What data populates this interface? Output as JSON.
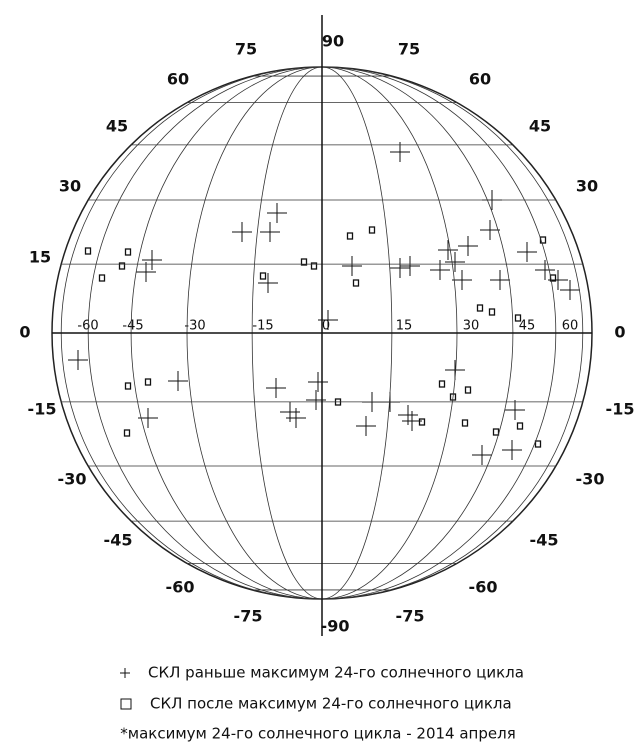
{
  "outer_labels": [
    "90",
    "75",
    "75",
    "60",
    "60",
    "45",
    "45",
    "30",
    "30",
    "15",
    "0",
    "0",
    "-15",
    "-15",
    "-30",
    "-30",
    "-45",
    "-45",
    "-60",
    "-60",
    "-75",
    "-75",
    "-90"
  ],
  "longitude_labels": [
    "-60",
    "-45",
    "-30",
    "-15",
    "0",
    "15",
    "30",
    "45",
    "60"
  ],
  "legend": {
    "before": "СКЛ раньше максимум 24-го солнечного цикла",
    "after": "СКЛ после максимум 24-го солнечного цикла",
    "note": "*максимум 24-го солнечного цикла - 2014 апреля"
  }
}
